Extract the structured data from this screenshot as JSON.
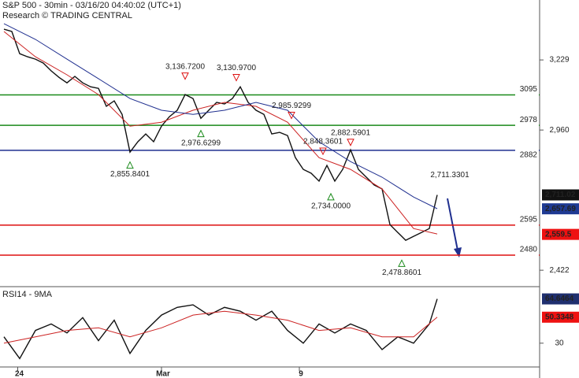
{
  "chart_data": [
    {
      "type": "line",
      "title": "S&P 500 - 30min - 03/16/20 04:40:02 (UTC+1)",
      "subtitle": "Research © TRADING CENTRAL",
      "xlim": [
        -1,
        136
      ],
      "ylim": [
        2365,
        3459
      ],
      "xticks": [
        {
          "value": 3.5,
          "label": "24"
        },
        {
          "value": 40,
          "label": "Mar"
        },
        {
          "value": 75,
          "label": "9"
        }
      ],
      "yticks": [
        {
          "value": 3229,
          "label": "3,229"
        },
        {
          "value": 2960,
          "label": "2,960"
        },
        {
          "value": 2422,
          "label": "2,422"
        }
      ],
      "series": [
        {
          "name": "S&P 500",
          "color": "#111111",
          "x": [
            0,
            2,
            4,
            6,
            8,
            10,
            12,
            14,
            16,
            18,
            20,
            22,
            24,
            26,
            28,
            30,
            32,
            34,
            36,
            38,
            40,
            42,
            44,
            46,
            48,
            50,
            52,
            54,
            56,
            58,
            60,
            62,
            64,
            66,
            68,
            70,
            72,
            74,
            76,
            78,
            80,
            82,
            84,
            86,
            88,
            90,
            92,
            94,
            96,
            98,
            100,
            102,
            104,
            106,
            108,
            110
          ],
          "values": [
            3347,
            3338,
            3253,
            3241,
            3232,
            3217,
            3187,
            3162,
            3141,
            3166,
            3141,
            3126,
            3120,
            3051,
            3072,
            3020,
            2875,
            2915,
            2945,
            2915,
            2975,
            3011,
            3036,
            3096,
            3081,
            3005,
            3036,
            3066,
            3060,
            3081,
            3126,
            3066,
            3036,
            3020,
            2945,
            2951,
            2939,
            2854,
            2809,
            2794,
            2764,
            2824,
            2764,
            2809,
            2884,
            2809,
            2779,
            2749,
            2734,
            2597,
            2567,
            2537,
            2552,
            2567,
            2582,
            2711
          ]
        },
        {
          "name": "MA fast",
          "color": "#cc2222",
          "x": [
            0,
            8,
            16,
            24,
            32,
            40,
            48,
            56,
            64,
            72,
            80,
            88,
            96,
            104,
            110
          ],
          "values": [
            3338,
            3241,
            3172,
            3096,
            2975,
            2990,
            3036,
            3066,
            3051,
            2990,
            2854,
            2809,
            2734,
            2582,
            2561
          ]
        },
        {
          "name": "MA slow",
          "color": "#1f2f8f",
          "x": [
            0,
            8,
            16,
            24,
            32,
            40,
            48,
            56,
            64,
            72,
            80,
            88,
            96,
            104,
            110
          ],
          "values": [
            3368,
            3308,
            3232,
            3157,
            3081,
            3036,
            3020,
            3036,
            3066,
            3036,
            2915,
            2839,
            2779,
            2703,
            2658
          ]
        }
      ],
      "levels": [
        {
          "value": 3095,
          "color": "#1a8a1a"
        },
        {
          "value": 2978,
          "color": "#1a8a1a"
        },
        {
          "value": 2882,
          "color": "#1f2f8f"
        },
        {
          "value": 2595,
          "color": "#dd1111"
        },
        {
          "value": 2480,
          "color": "#dd1111"
        }
      ],
      "annotations": [
        {
          "x": 46,
          "y": 3136.72,
          "text": "3,136.7200",
          "marker": "down"
        },
        {
          "x": 59,
          "y": 3130.97,
          "text": "3,130.9700",
          "marker": "down"
        },
        {
          "x": 73,
          "y": 2985.9299,
          "text": "2,985.9299",
          "marker": "down"
        },
        {
          "x": 50,
          "y": 2976.6299,
          "text": "2,976.6299",
          "marker": "up"
        },
        {
          "x": 32,
          "y": 2855.8401,
          "text": "2,855.8401",
          "marker": "up"
        },
        {
          "x": 88,
          "y": 2882.5901,
          "text": "2,882.5901",
          "marker": "down"
        },
        {
          "x": 81,
          "y": 2848.3601,
          "text": "2,848.3601",
          "marker": "down"
        },
        {
          "x": 83,
          "y": 2734.0,
          "text": "2,734.0000",
          "marker": "up"
        },
        {
          "x": 101,
          "y": 2478.8601,
          "text": "2,478.8601",
          "marker": "up"
        },
        {
          "x": 110,
          "y": 2711.3301,
          "text": "2,711.3301",
          "marker": "none"
        }
      ],
      "price_tags": [
        {
          "value": 2711.02,
          "label": "2,711.02",
          "color": "#111111"
        },
        {
          "value": 2657.69,
          "label": "2,657.69",
          "color": "#1f3a93"
        },
        {
          "value": 2559.5,
          "label": "2,559.5",
          "color": "#ee1111"
        }
      ]
    },
    {
      "type": "line",
      "title": "RSI14 - 9MA",
      "ylim": [
        12,
        73
      ],
      "yticks": [
        30
      ],
      "series": [
        {
          "name": "RSI14",
          "color": "#111111",
          "x": [
            0,
            4,
            8,
            12,
            16,
            20,
            24,
            28,
            32,
            36,
            40,
            44,
            48,
            52,
            56,
            60,
            64,
            68,
            72,
            76,
            80,
            84,
            88,
            92,
            96,
            100,
            104,
            108,
            110
          ],
          "values": [
            35,
            18,
            40,
            45,
            38,
            50,
            32,
            48,
            22,
            40,
            52,
            58,
            60,
            52,
            58,
            55,
            48,
            55,
            40,
            30,
            45,
            38,
            45,
            40,
            25,
            35,
            30,
            45,
            64.6464
          ]
        },
        {
          "name": "9MA",
          "color": "#cc2222",
          "x": [
            0,
            8,
            16,
            24,
            32,
            40,
            48,
            56,
            64,
            72,
            80,
            88,
            96,
            104,
            110
          ],
          "values": [
            30,
            35,
            40,
            42,
            35,
            42,
            52,
            55,
            52,
            48,
            40,
            42,
            35,
            35,
            50.3348
          ]
        }
      ],
      "price_tags": [
        {
          "value": 64.6464,
          "label": "64.6464",
          "color": "#1f2f6f"
        },
        {
          "value": 50.3348,
          "label": "50.3348",
          "color": "#ee1111"
        }
      ]
    }
  ]
}
